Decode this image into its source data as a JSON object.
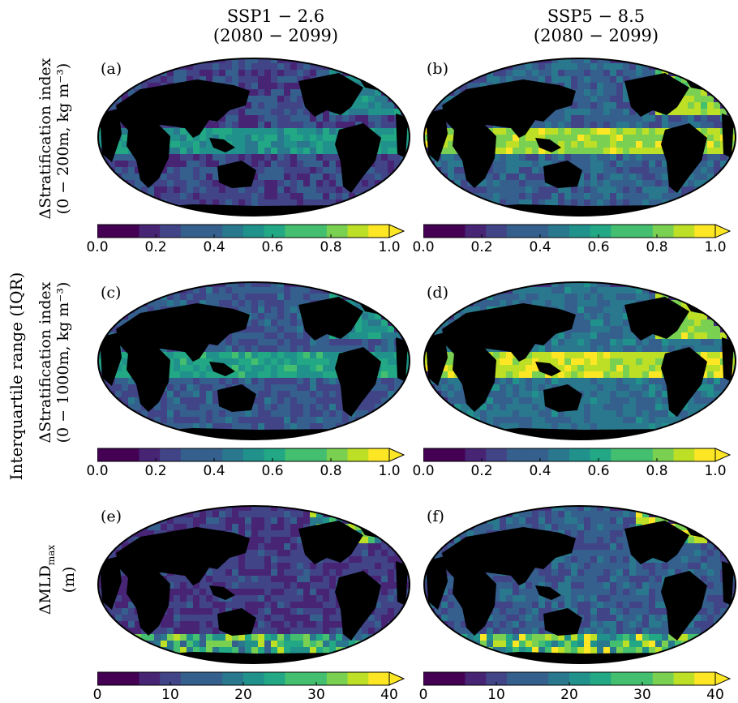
{
  "column_titles": [
    {
      "line1": "SSP1 − 2.6",
      "line2": "(2080 − 2099)"
    },
    {
      "line1": "SSP5 − 8.5",
      "line2": "(2080 − 2099)"
    }
  ],
  "side_label": "Interquartile range (IQR)",
  "rows": [
    {
      "line1": "ΔStratification index",
      "line2": "(0 − 200m,  kg m⁻³)"
    },
    {
      "line1": "ΔStratification index",
      "line2": "(0 − 1000m,  kg m⁻³)"
    },
    {
      "line1": "ΔMLD",
      "sub": "max",
      "line2": "(m)"
    }
  ],
  "panels": [
    {
      "letter": "(a)",
      "scenario": "SSP1-2.6",
      "row": 0
    },
    {
      "letter": "(b)",
      "scenario": "SSP5-8.5",
      "row": 0
    },
    {
      "letter": "(c)",
      "scenario": "SSP1-2.6",
      "row": 1
    },
    {
      "letter": "(d)",
      "scenario": "SSP5-8.5",
      "row": 1
    },
    {
      "letter": "(e)",
      "scenario": "SSP1-2.6",
      "row": 2
    },
    {
      "letter": "(f)",
      "scenario": "SSP5-8.5",
      "row": 2
    }
  ],
  "colorbars": [
    {
      "row": 0,
      "ticks": [
        "0.0",
        "0.2",
        "0.4",
        "0.6",
        "0.8",
        "1.0"
      ],
      "min": 0,
      "max": 1.0,
      "extend": "max"
    },
    {
      "row": 1,
      "ticks": [
        "0.0",
        "0.2",
        "0.4",
        "0.6",
        "0.8",
        "1.0"
      ],
      "min": 0,
      "max": 1.0,
      "extend": "max"
    },
    {
      "row": 2,
      "ticks": [
        "0",
        "10",
        "20",
        "30",
        "40"
      ],
      "min": 0,
      "max": 40,
      "extend": "max"
    }
  ],
  "colormap": [
    "#440154",
    "#482475",
    "#414487",
    "#355f8d",
    "#2a788e",
    "#21918c",
    "#22a884",
    "#44bf70",
    "#7ad151",
    "#bddf26",
    "#fde725"
  ],
  "colors": {
    "land": "#000000",
    "no_data": "#ffffff",
    "ocean_base": "#46307f"
  }
}
